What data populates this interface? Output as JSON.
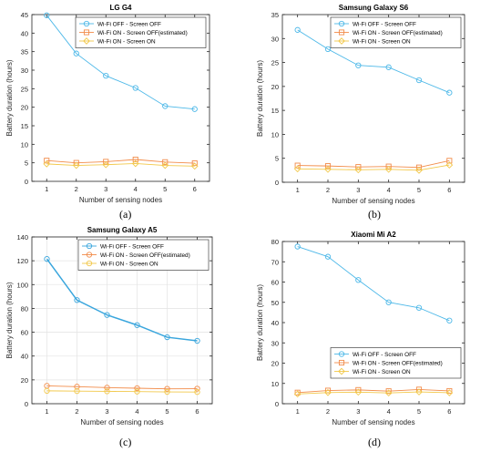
{
  "chart_data": [
    {
      "type": "line",
      "title": "LG G4",
      "xlabel": "Number of sensing nodes",
      "ylabel": "Battery duration (hours)",
      "x": [
        1,
        2,
        3,
        4,
        5,
        6
      ],
      "xticks": [
        "1",
        "2",
        "3",
        "4",
        "5",
        "6"
      ],
      "xlim": [
        0.5,
        6.5
      ],
      "ylim": [
        0,
        45
      ],
      "yticks": [
        "0",
        "5",
        "10",
        "15",
        "20",
        "25",
        "30",
        "35",
        "40",
        "45"
      ],
      "grid": false,
      "legend_position": "top-right",
      "series": [
        {
          "name": "Wi-Fi OFF - Screen OFF",
          "marker": "circle",
          "color": "#4db8e8",
          "values": [
            44.8,
            34.5,
            28.5,
            25.2,
            20.3,
            19.5
          ]
        },
        {
          "name": "Wi-Fi ON - Screen OFF(estimated)",
          "marker": "square",
          "color": "#f28c4a",
          "values": [
            5.6,
            5.0,
            5.3,
            5.9,
            5.2,
            4.9
          ]
        },
        {
          "name": "Wi-Fi ON - Screen ON",
          "marker": "diamond",
          "color": "#f2c84a",
          "values": [
            4.7,
            4.3,
            4.5,
            4.8,
            4.3,
            4.1
          ]
        }
      ],
      "caption": "(a)"
    },
    {
      "type": "line",
      "title": "Samsung Galaxy S6",
      "xlabel": "Number of sensing nodes",
      "ylabel": "Battery duration (hours)",
      "x": [
        1,
        2,
        3,
        4,
        5,
        6
      ],
      "xticks": [
        "1",
        "2",
        "3",
        "4",
        "5",
        "6"
      ],
      "xlim": [
        0.5,
        6.5
      ],
      "ylim": [
        0,
        35
      ],
      "yticks": [
        "0",
        "5",
        "10",
        "15",
        "20",
        "25",
        "30",
        "35"
      ],
      "grid": false,
      "legend_position": "top-right",
      "series": [
        {
          "name": "Wi-Fi OFF - Screen OFF",
          "marker": "circle",
          "color": "#4db8e8",
          "values": [
            31.8,
            27.8,
            24.4,
            24.0,
            21.3,
            18.7
          ]
        },
        {
          "name": "Wi-Fi ON - Screen OFF(estimated)",
          "marker": "square",
          "color": "#f28c4a",
          "values": [
            3.5,
            3.4,
            3.2,
            3.3,
            3.1,
            4.5
          ]
        },
        {
          "name": "Wi-Fi ON - Screen ON",
          "marker": "diamond",
          "color": "#f2c84a",
          "values": [
            2.8,
            2.7,
            2.6,
            2.7,
            2.5,
            3.6
          ]
        }
      ],
      "caption": "(b)"
    },
    {
      "type": "line",
      "title": "Samsung Galaxy A5",
      "xlabel": "Number of sensing nodes",
      "ylabel": "Battery duration (hours)",
      "x": [
        1,
        2,
        3,
        4,
        5,
        6
      ],
      "xticks": [
        "1",
        "2",
        "3",
        "4",
        "5",
        "6"
      ],
      "xlim": [
        0.5,
        6.5
      ],
      "ylim": [
        0,
        140
      ],
      "yticks": [
        "0",
        "20",
        "40",
        "60",
        "80",
        "100",
        "120",
        "140"
      ],
      "grid": true,
      "legend_position": "top-right",
      "series": [
        {
          "name": "Wi-Fi OFF - Screen OFF",
          "marker": "circle",
          "color": "#3aa6dd",
          "values": [
            121.5,
            87.0,
            74.5,
            66.0,
            55.8,
            52.8
          ]
        },
        {
          "name": "Wi-Fi ON - Screen OFF(estimated)",
          "marker": "circle",
          "color": "#f28c4a",
          "values": [
            15.0,
            14.3,
            13.5,
            13.0,
            12.5,
            12.6
          ]
        },
        {
          "name": "Wi-Fi ON - Screen ON",
          "marker": "circle",
          "color": "#f2c84a",
          "values": [
            10.8,
            10.6,
            10.4,
            10.2,
            9.9,
            9.8
          ]
        }
      ],
      "caption": "(c)"
    },
    {
      "type": "line",
      "title": "Xiaomi Mi A2",
      "xlabel": "Number of sensing nodes",
      "ylabel": "Battery duration (hours)",
      "x": [
        1,
        2,
        3,
        4,
        5,
        6
      ],
      "xticks": [
        "1",
        "2",
        "3",
        "4",
        "5",
        "6"
      ],
      "xlim": [
        0.5,
        6.5
      ],
      "ylim": [
        0,
        80
      ],
      "yticks": [
        "0",
        "10",
        "20",
        "30",
        "40",
        "50",
        "60",
        "70",
        "80"
      ],
      "grid": false,
      "legend_position": "bottom-right",
      "series": [
        {
          "name": "Wi-Fi OFF - Screen OFF",
          "marker": "circle",
          "color": "#4db8e8",
          "values": [
            77.5,
            72.5,
            61.0,
            50.0,
            47.3,
            41.0
          ]
        },
        {
          "name": "Wi-Fi ON - Screen OFF(estimated)",
          "marker": "square",
          "color": "#f28c4a",
          "values": [
            5.5,
            6.5,
            6.8,
            6.2,
            7.0,
            6.3
          ]
        },
        {
          "name": "Wi-Fi ON - Screen ON",
          "marker": "diamond",
          "color": "#f2c84a",
          "values": [
            4.8,
            5.5,
            5.7,
            5.3,
            5.8,
            5.4
          ]
        }
      ],
      "caption": "(d)"
    }
  ]
}
